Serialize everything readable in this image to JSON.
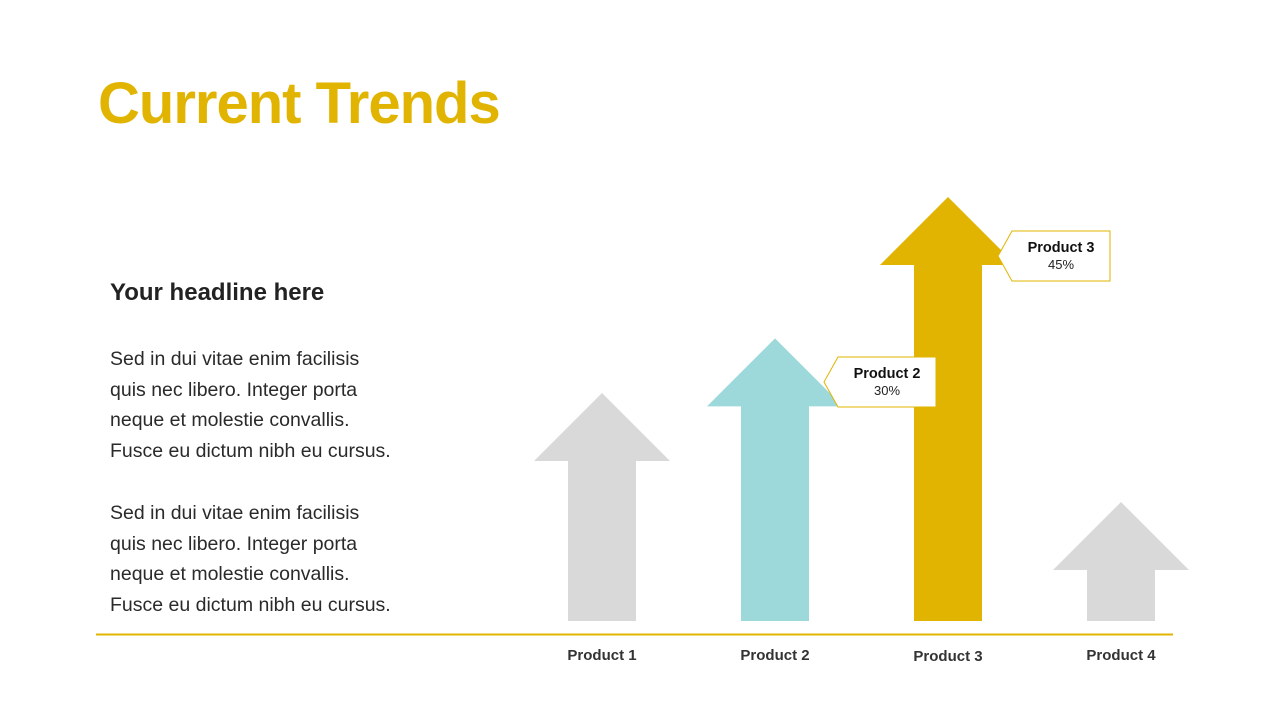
{
  "title": "Current Trends",
  "headline": "Your headline here",
  "paragraphs": [
    [
      "Sed in dui vitae enim facilisis",
      "quis nec libero. Integer porta",
      "neque et molestie convallis.",
      "Fusce eu dictum nibh eu cursus."
    ],
    [
      "Sed in dui vitae enim facilisis",
      "quis nec libero. Integer porta",
      "neque et molestie convallis.",
      "Fusce eu dictum nibh eu cursus."
    ]
  ],
  "colors": {
    "accent": "#e0b400",
    "teal": "#9dd9da",
    "gray": "#d9d9d9",
    "text": "#222222"
  },
  "chart_data": {
    "type": "bar",
    "categories": [
      "Product 1",
      "Product 2",
      "Product 3",
      "Product 4"
    ],
    "values": [
      null,
      30,
      45,
      null
    ],
    "value_labels": [
      "",
      "30%",
      "45%",
      ""
    ],
    "callouts": [
      {
        "category": "Product 2",
        "name": "Product 2",
        "value": "30%"
      },
      {
        "category": "Product 3",
        "name": "Product 3",
        "value": "45%"
      }
    ],
    "bar_colors": [
      "#d9d9d9",
      "#9dd9da",
      "#e0b400",
      "#d9d9d9"
    ],
    "title": "",
    "xlabel": "",
    "ylabel": "",
    "grid": false,
    "legend": "none"
  }
}
